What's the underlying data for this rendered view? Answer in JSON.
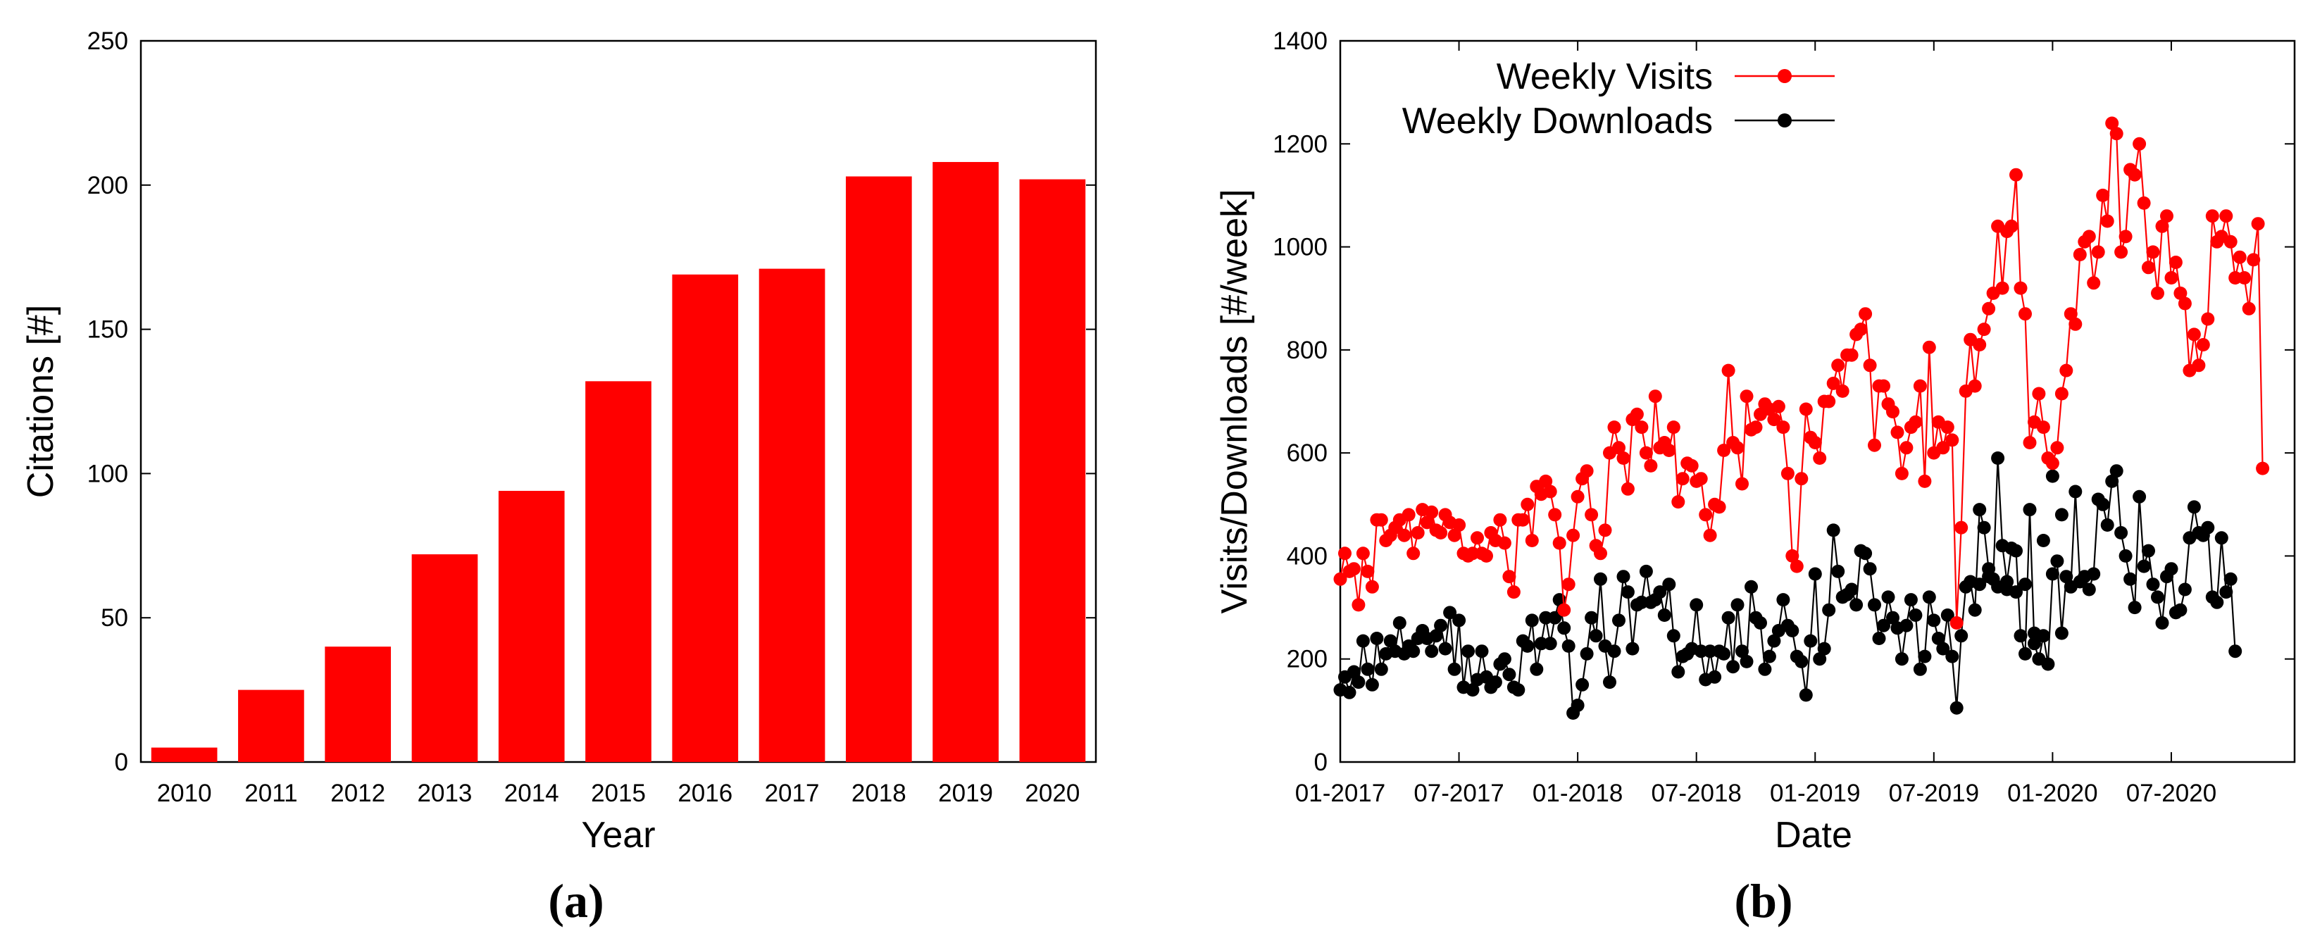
{
  "colors": {
    "red": "#ff0000",
    "black": "#000000",
    "axis": "#000000"
  },
  "chart_data": [
    {
      "type": "bar",
      "panel_label": "(a)",
      "title": "",
      "xlabel": "Year",
      "ylabel": "Citations [#]",
      "categories": [
        "2010",
        "2011",
        "2012",
        "2013",
        "2014",
        "2015",
        "2016",
        "2017",
        "2018",
        "2019",
        "2020"
      ],
      "values": [
        5,
        25,
        40,
        72,
        94,
        132,
        169,
        171,
        203,
        208,
        202
      ],
      "ylim": [
        0,
        250
      ],
      "yticks": [
        0,
        50,
        100,
        150,
        200,
        250
      ],
      "grid": false,
      "color": "#ff0000"
    },
    {
      "type": "line",
      "panel_label": "(b)",
      "title": "",
      "xlabel": "Date",
      "ylabel": "Visits/Downloads [#/week]",
      "ylim": [
        0,
        1400
      ],
      "yticks": [
        0,
        200,
        400,
        600,
        800,
        1000,
        1200,
        1400
      ],
      "x_unit": "weeks since 01-2017",
      "xlim": [
        0,
        209
      ],
      "xtick_labels": [
        "01-2017",
        "07-2017",
        "01-2018",
        "07-2018",
        "01-2019",
        "07-2019",
        "01-2020",
        "07-2020"
      ],
      "xtick_weeks": [
        0,
        26,
        52,
        78,
        104,
        130,
        156,
        182
      ],
      "legend_position": "top-left",
      "grid": false,
      "series": [
        {
          "name": "Weekly Visits",
          "color": "#ff0000",
          "values": [
            355,
            405,
            370,
            375,
            305,
            405,
            370,
            340,
            470,
            470,
            430,
            440,
            455,
            470,
            440,
            480,
            405,
            445,
            490,
            465,
            485,
            450,
            445,
            480,
            465,
            440,
            460,
            405,
            400,
            405,
            435,
            405,
            400,
            445,
            430,
            470,
            425,
            360,
            330,
            470,
            470,
            500,
            430,
            535,
            520,
            545,
            525,
            480,
            425,
            295,
            345,
            440,
            515,
            550,
            565,
            480,
            420,
            405,
            450,
            600,
            650,
            610,
            590,
            530,
            665,
            675,
            650,
            600,
            575,
            710,
            610,
            620,
            605,
            650,
            505,
            550,
            580,
            575,
            545,
            550,
            480,
            440,
            500,
            495,
            605,
            760,
            620,
            610,
            540,
            710,
            645,
            650,
            675,
            695,
            685,
            665,
            690,
            650,
            560,
            400,
            380,
            550,
            685,
            630,
            620,
            590,
            700,
            700,
            735,
            770,
            720,
            790,
            790,
            830,
            840,
            870,
            770,
            615,
            730,
            730,
            695,
            680,
            640,
            560,
            610,
            650,
            660,
            730,
            545,
            805,
            600,
            660,
            610,
            650,
            625,
            270,
            455,
            720,
            820,
            730,
            810,
            840,
            880,
            910,
            1040,
            920,
            1030,
            1040,
            1140,
            920,
            870,
            620,
            660,
            715,
            650,
            590,
            580,
            610,
            715,
            760,
            870,
            850,
            985,
            1010,
            1020,
            930,
            990,
            1100,
            1050,
            1240,
            1220,
            990,
            1020,
            1150,
            1140,
            1200,
            1085,
            960,
            990,
            910,
            1040,
            1060,
            940,
            970,
            910,
            890,
            760,
            830,
            770,
            810,
            860,
            1060,
            1010,
            1020,
            1060,
            1010,
            940,
            980,
            940,
            880,
            975,
            1045,
            570
          ]
        },
        {
          "name": "Weekly Downloads",
          "color": "#000000",
          "values": [
            140,
            165,
            135,
            175,
            155,
            235,
            180,
            150,
            240,
            180,
            210,
            235,
            215,
            270,
            210,
            225,
            215,
            240,
            255,
            240,
            215,
            245,
            265,
            220,
            290,
            180,
            275,
            145,
            215,
            140,
            160,
            215,
            165,
            145,
            155,
            190,
            200,
            170,
            145,
            140,
            235,
            225,
            275,
            180,
            230,
            280,
            230,
            280,
            315,
            260,
            225,
            95,
            110,
            150,
            210,
            280,
            245,
            355,
            225,
            155,
            215,
            275,
            360,
            330,
            220,
            305,
            310,
            370,
            310,
            315,
            330,
            285,
            345,
            245,
            175,
            205,
            210,
            220,
            305,
            215,
            160,
            215,
            165,
            215,
            210,
            280,
            185,
            305,
            215,
            195,
            340,
            280,
            270,
            180,
            205,
            235,
            255,
            315,
            265,
            255,
            205,
            195,
            130,
            235,
            365,
            200,
            220,
            295,
            450,
            370,
            320,
            325,
            335,
            305,
            410,
            405,
            375,
            305,
            240,
            265,
            320,
            280,
            260,
            200,
            265,
            315,
            285,
            180,
            205,
            320,
            275,
            240,
            220,
            285,
            205,
            105,
            245,
            340,
            350,
            295,
            490,
            455,
            375,
            355,
            590,
            420,
            350,
            415,
            410,
            245,
            210,
            490,
            230,
            200,
            245,
            190,
            365,
            390,
            250,
            360,
            340,
            525,
            350,
            360,
            335,
            365,
            510,
            500,
            460,
            545,
            565,
            445,
            400,
            355,
            300,
            515,
            380,
            410,
            345,
            320,
            270,
            360,
            375,
            290,
            295,
            335,
            435,
            495,
            445,
            440,
            455,
            320,
            310,
            435,
            330,
            355,
            215
          ],
          "overlay_values": [
            345,
            360,
            340,
            335,
            330,
            345,
            250,
            430,
            555,
            480
          ]
        }
      ]
    }
  ]
}
